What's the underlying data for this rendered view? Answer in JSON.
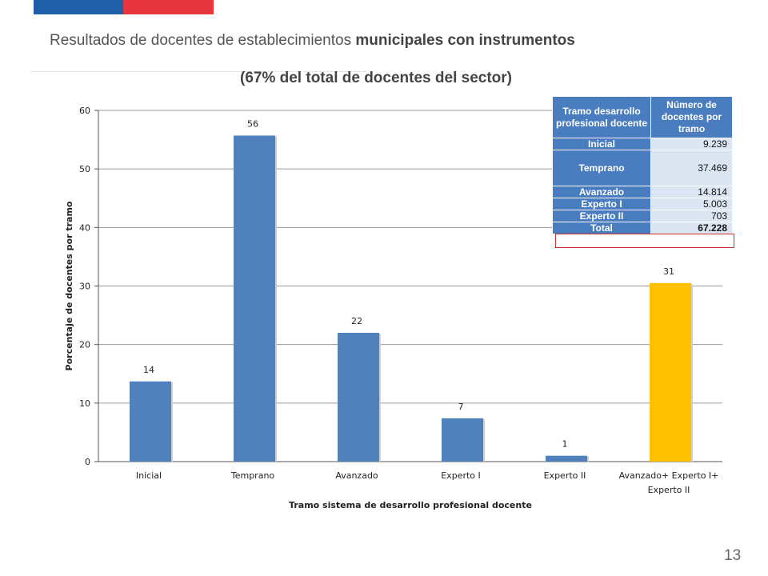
{
  "header": {
    "title_part1": "Resultados de docentes de establecimientos ",
    "title_part2": "municipales con instrumentos",
    "subtitle": "(67% del total de docentes del sector)",
    "page_number": "13"
  },
  "colors": {
    "flag_blue": "#1f5fa8",
    "flag_red": "#e8363f",
    "bar_default": "#4f81bd",
    "bar_highlight": "#ffc000",
    "table_header": "#4a7dbf",
    "table_cell": "#dce6f2",
    "highlight_border": "#d32f2f"
  },
  "chart_data": {
    "type": "bar",
    "categories": [
      "Inicial",
      "Temprano",
      "Avanzado",
      "Experto I",
      "Experto II",
      "Avanzado+ Experto I+ Experto II"
    ],
    "category_lines": [
      [
        "Inicial"
      ],
      [
        "Temprano"
      ],
      [
        "Avanzado"
      ],
      [
        "Experto I"
      ],
      [
        "Experto II"
      ],
      [
        "Avanzado+ Experto I+",
        "Experto II"
      ]
    ],
    "values": [
      13.7,
      55.7,
      22.0,
      7.4,
      1.0,
      30.5
    ],
    "data_labels": [
      "14",
      "56",
      "22",
      "7",
      "1",
      "31"
    ],
    "highlight_index": 5,
    "xlabel": "Tramo sistema de desarrollo profesional docente",
    "ylabel": "Porcentaje de docentes por tramo",
    "ylim": [
      0,
      60
    ],
    "yticks": [
      0,
      10,
      20,
      30,
      40,
      50,
      60
    ],
    "grid": true,
    "legend": "none"
  },
  "table": {
    "headers": [
      "Tramo desarrollo profesional docente",
      "Número de docentes por tramo"
    ],
    "rows": [
      {
        "label": "Inicial",
        "value": "9.239"
      },
      {
        "label": "Temprano",
        "value": "37.469"
      },
      {
        "label": "Avanzado",
        "value": "14.814"
      },
      {
        "label": "Experto I",
        "value": "5.003"
      },
      {
        "label": "Experto II",
        "value": "703"
      },
      {
        "label": "Total",
        "value": "67.228"
      }
    ]
  }
}
